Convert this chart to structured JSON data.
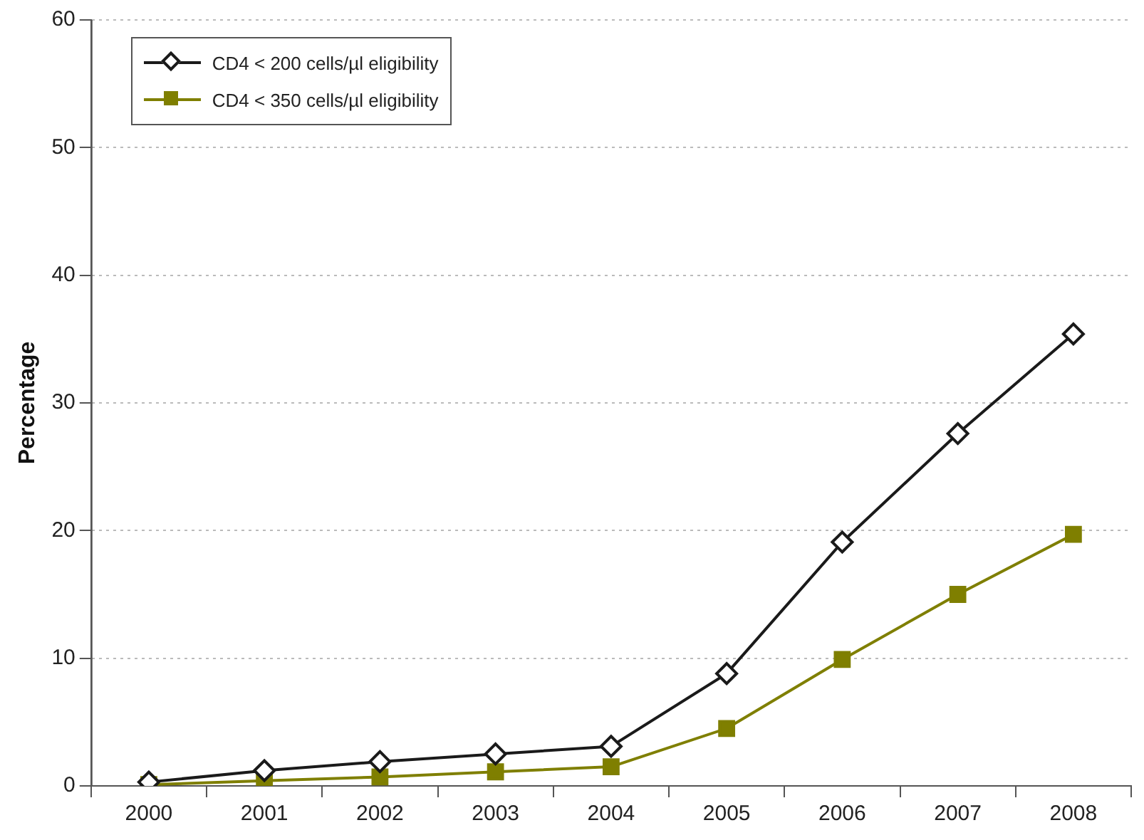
{
  "chart_data": {
    "type": "line",
    "ylabel": "Percentage",
    "categories": [
      "2000",
      "2001",
      "2002",
      "2003",
      "2004",
      "2005",
      "2006",
      "2007",
      "2008"
    ],
    "series": [
      {
        "name": "CD4 < 200 cells/µl eligibility",
        "color": "#1a1a1a",
        "marker": "diamond",
        "values": [
          0.3,
          1.2,
          1.9,
          2.5,
          3.1,
          8.8,
          19.1,
          27.6,
          35.4
        ]
      },
      {
        "name": "CD4 < 350 cells/µl eligibility",
        "color": "#7f7f00",
        "marker": "square",
        "values": [
          0.1,
          0.4,
          0.7,
          1.1,
          1.5,
          4.5,
          9.9,
          15.0,
          19.7
        ]
      }
    ],
    "ylim": [
      0,
      60
    ],
    "yticks": [
      0,
      10,
      20,
      30,
      40,
      50,
      60
    ],
    "grid": "y",
    "legend": "top left",
    "line_style": "solid"
  }
}
